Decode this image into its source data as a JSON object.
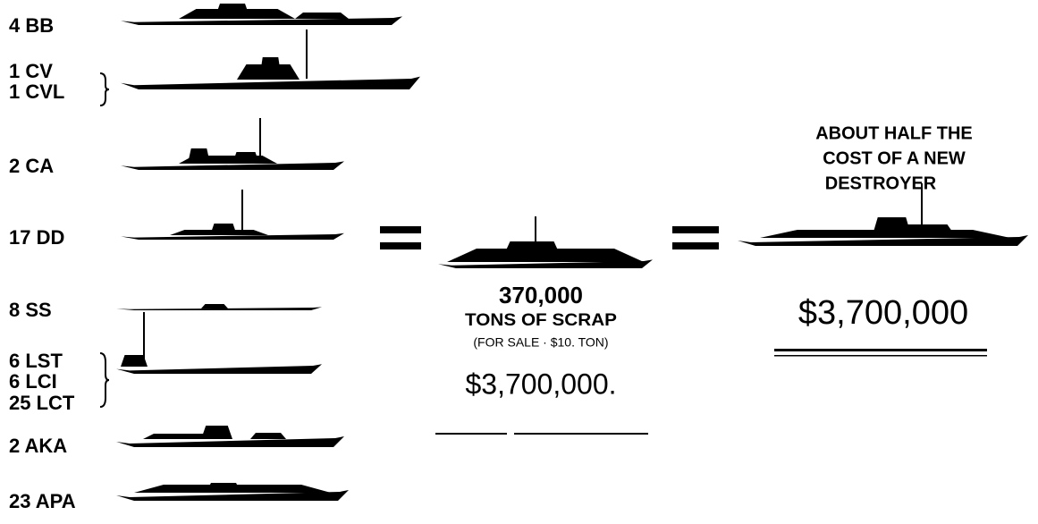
{
  "fleet": [
    [
      "4 BB"
    ],
    [
      "1 CV",
      "1 CVL"
    ],
    [
      "2 CA"
    ],
    [
      "17 DD"
    ],
    [
      "8 SS"
    ],
    [
      "6 LST",
      "6 LCI",
      "25 LCT"
    ],
    [
      "2 AKA"
    ],
    [
      "23 APA"
    ]
  ],
  "scrap": {
    "tons": "370,000",
    "unit": "TONS OF SCRAP",
    "price_note": "(FOR SALE · $10. TON)",
    "value": "$3,700,000."
  },
  "destroyer": {
    "caption_lines": [
      "ABOUT HALF THE",
      "COST OF A NEW",
      "DESTROYER"
    ],
    "value": "$3,700,000"
  }
}
